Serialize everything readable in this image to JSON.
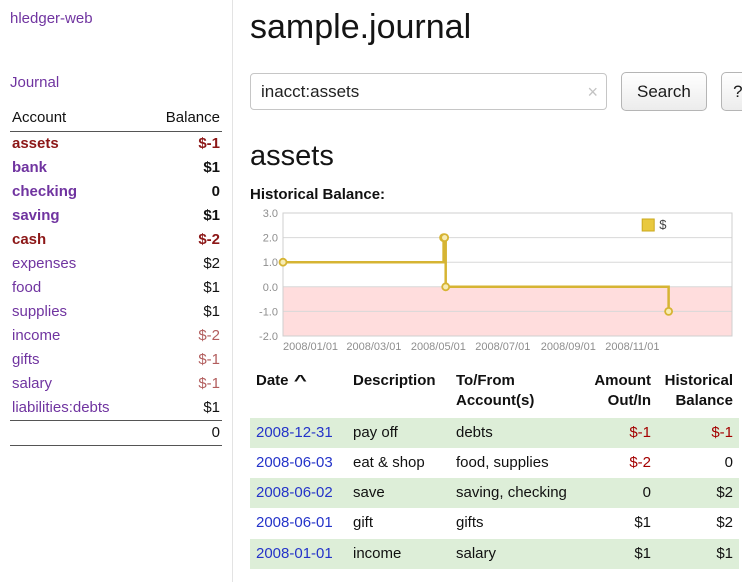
{
  "colors": {
    "purple": "#7034a0",
    "maroon": "#8c1717",
    "neg-soft": "#b25d5d",
    "neg": "#a40000",
    "link-blue": "#2433c9",
    "row-green": "#ddeed8",
    "chart-line": "#d6b433",
    "chart-marker-fill": "#f7ecb4",
    "chart-neg-region": "#ffdddd",
    "legend-fill": "#e9c93f"
  },
  "sidebar": {
    "app_title": "hledger-web",
    "journal_link": "Journal",
    "accounts": {
      "header_account": "Account",
      "header_balance": "Balance",
      "rows": [
        {
          "name": "assets",
          "balance": "$-1",
          "indent": 0,
          "bold": true,
          "name_red": true,
          "neg": true
        },
        {
          "name": "bank",
          "balance": "$1",
          "indent": 1,
          "bold": true
        },
        {
          "name": "checking",
          "balance": "0",
          "indent": 2,
          "bold": true
        },
        {
          "name": "saving",
          "balance": "$1",
          "indent": 2,
          "bold": true
        },
        {
          "name": "cash",
          "balance": "$-2",
          "indent": 1,
          "bold": true,
          "name_red": true,
          "neg": true
        },
        {
          "name": "expenses",
          "balance": "$2",
          "indent": 0
        },
        {
          "name": "food",
          "balance": "$1",
          "indent": 1
        },
        {
          "name": "supplies",
          "balance": "$1",
          "indent": 1
        },
        {
          "name": "income",
          "balance": "$-2",
          "indent": 0,
          "neg": true
        },
        {
          "name": "gifts",
          "balance": "$-1",
          "indent": 1,
          "neg": true
        },
        {
          "name": "salary",
          "balance": "$-1",
          "indent": 1,
          "neg": true
        },
        {
          "name": "liabilities:debts",
          "balance": "$1",
          "indent": 0
        }
      ],
      "total": "0"
    }
  },
  "main": {
    "title": "sample.journal",
    "search": {
      "value": "inacct:assets",
      "clear_icon": "×",
      "button_label": "Search",
      "help_label": "?"
    },
    "account_heading": "assets",
    "chart_title": "Historical Balance:",
    "register": {
      "sort_icon": "^",
      "headers": {
        "date": "Date",
        "description": "Description",
        "accounts": "To/From Account(s)",
        "amount": "Amount Out/In",
        "balance": "Historical Balance"
      },
      "rows": [
        {
          "date": "2008-12-31",
          "description": "pay off",
          "accounts": "debts",
          "amount": "$-1",
          "amount_neg": true,
          "balance": "$-1",
          "balance_neg": true
        },
        {
          "date": "2008-06-03",
          "description": "eat & shop",
          "accounts": "food, supplies",
          "amount": "$-2",
          "amount_neg": true,
          "balance": "0"
        },
        {
          "date": "2008-06-02",
          "description": "save",
          "accounts": "saving, checking",
          "amount": "0",
          "balance": "$2"
        },
        {
          "date": "2008-06-01",
          "description": "gift",
          "accounts": "gifts",
          "amount": "$1",
          "balance": "$2"
        },
        {
          "date": "2008-01-01",
          "description": "income",
          "accounts": "salary",
          "amount": "$1",
          "balance": "$1"
        }
      ]
    }
  },
  "chart_data": {
    "type": "line",
    "step": true,
    "title": "Historical Balance",
    "series": [
      {
        "name": "$",
        "points": [
          [
            "2008-01-01",
            1
          ],
          [
            "2008-06-01",
            2
          ],
          [
            "2008-06-02",
            2
          ],
          [
            "2008-06-03",
            0
          ],
          [
            "2008-12-31",
            -1
          ]
        ]
      }
    ],
    "xlim": [
      "2008-01-01",
      "2009-03-01"
    ],
    "ylim": [
      -2,
      3
    ],
    "yticks": [
      3,
      2,
      1,
      0,
      -1,
      -2
    ],
    "xticks": [
      "2008-01-01",
      "2008-03-01",
      "2008-05-01",
      "2008-07-01",
      "2008-09-01",
      "2008-11-01"
    ],
    "legend": {
      "label": "$",
      "position": "top-right"
    },
    "grid": "horizontal",
    "negative_region_shaded": true
  }
}
